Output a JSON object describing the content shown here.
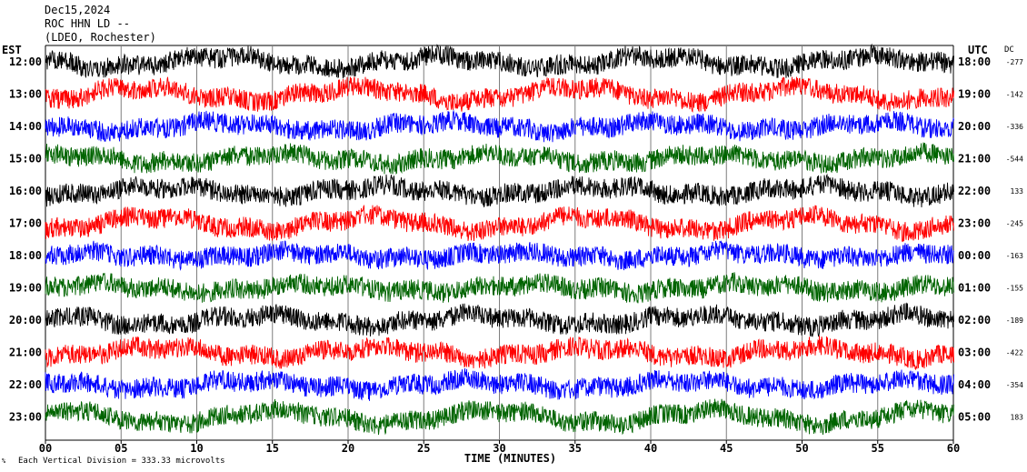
{
  "header": {
    "date": "Dec15,2024",
    "station": "ROC HHN LD --",
    "network": "(LDEO, Rochester)"
  },
  "chart_data": {
    "type": "line",
    "title": "Dec15,2024 ROC HHN LD -- (LDEO, Rochester)",
    "xlabel": "TIME (MINUTES)",
    "x_ticks": [
      "00",
      "05",
      "10",
      "15",
      "20",
      "25",
      "30",
      "35",
      "40",
      "45",
      "50",
      "55",
      "60"
    ],
    "xlim": [
      0,
      60
    ],
    "left_axis_title": "EST",
    "right_axis_title": "UTC",
    "dc_title": "DC",
    "footnote": "Each Vertical Division =  333.33 microvolts",
    "footnote_mark": "%",
    "grid": true,
    "colors": [
      "#000000",
      "#ff0000",
      "#0000ff",
      "#006400"
    ],
    "series": [
      {
        "est": "12:00",
        "utc": "18:00",
        "dc": "-277",
        "color": "#000000"
      },
      {
        "est": "13:00",
        "utc": "19:00",
        "dc": "-142",
        "color": "#ff0000"
      },
      {
        "est": "14:00",
        "utc": "20:00",
        "dc": "-336",
        "color": "#0000ff"
      },
      {
        "est": "15:00",
        "utc": "21:00",
        "dc": "-544",
        "color": "#006400"
      },
      {
        "est": "16:00",
        "utc": "22:00",
        "dc": "133",
        "color": "#000000"
      },
      {
        "est": "17:00",
        "utc": "23:00",
        "dc": "-245",
        "color": "#ff0000"
      },
      {
        "est": "18:00",
        "utc": "00:00",
        "dc": "-163",
        "color": "#0000ff"
      },
      {
        "est": "19:00",
        "utc": "01:00",
        "dc": "-155",
        "color": "#006400"
      },
      {
        "est": "20:00",
        "utc": "02:00",
        "dc": "-189",
        "color": "#000000"
      },
      {
        "est": "21:00",
        "utc": "03:00",
        "dc": "-422",
        "color": "#ff0000"
      },
      {
        "est": "22:00",
        "utc": "04:00",
        "dc": "-354",
        "color": "#0000ff"
      },
      {
        "est": "23:00",
        "utc": "05:00",
        "dc": "183",
        "color": "#006400"
      }
    ]
  }
}
